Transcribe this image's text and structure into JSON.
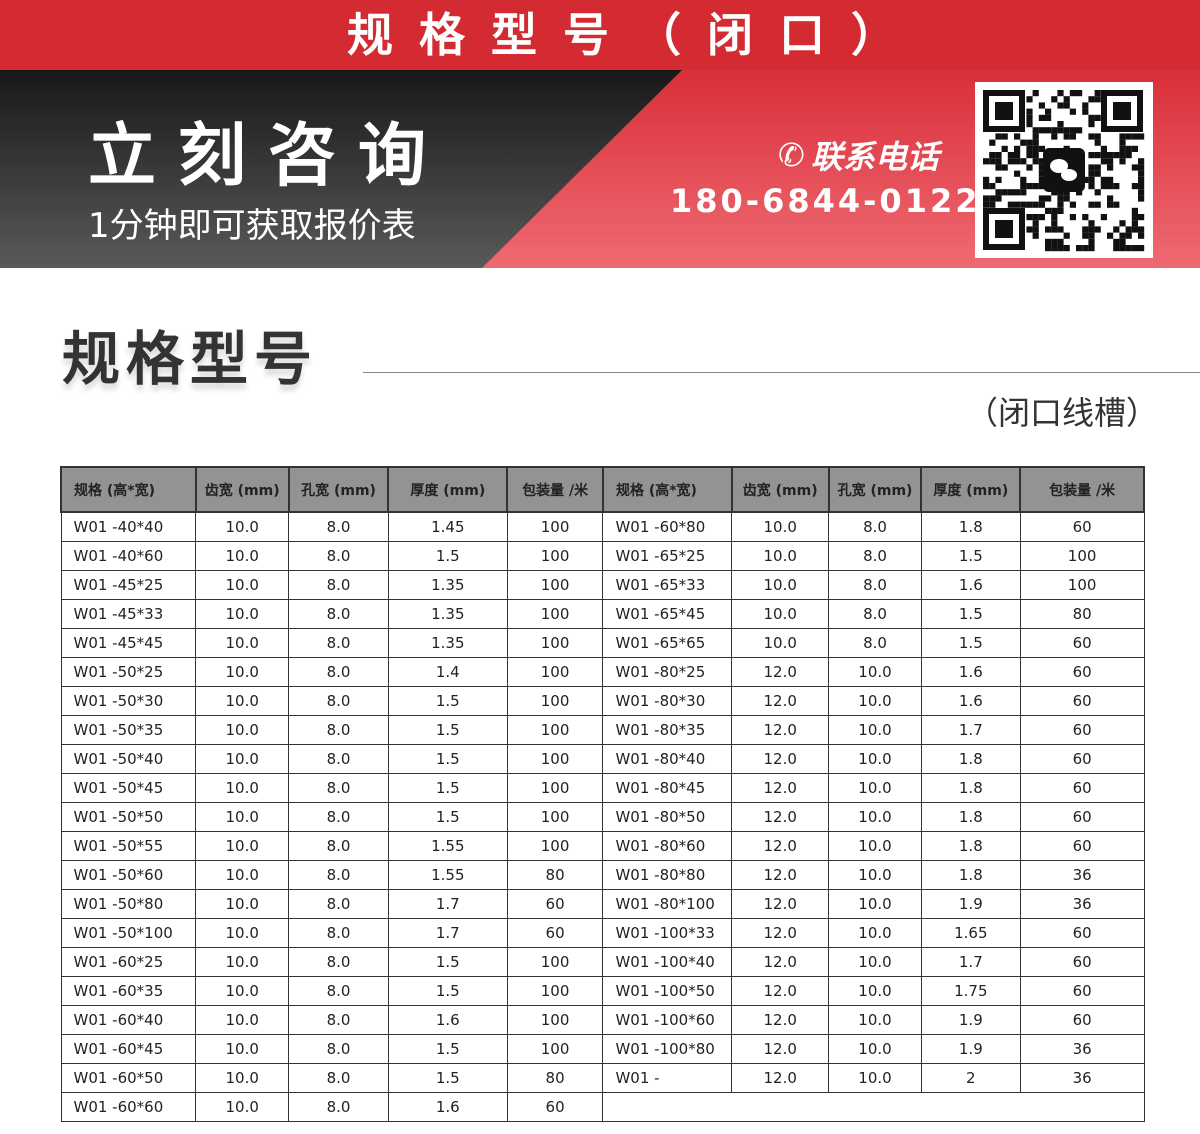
{
  "header": {
    "top_title": "规格型号（闭口）",
    "cta_title": "立刻咨询",
    "cta_sub": "1分钟即可获取报价表",
    "contact_label": "联系电话",
    "phone": "180-6844-0122",
    "qr_icon": "wechat-icon"
  },
  "section": {
    "title": "规格型号",
    "subtitle": "（闭口线槽）"
  },
  "colors": {
    "red": "#d42b33",
    "dark": "#222222",
    "header_gray": "#939393"
  },
  "table": {
    "headers": [
      "规格 (高*宽)",
      "齿宽 (mm)",
      "孔宽 (mm)",
      "厚度 (mm)",
      "包装量 /米",
      "规格 (高*宽)",
      "齿宽 (mm)",
      "孔宽 (mm)",
      "厚度 (mm)",
      "包装量 /米"
    ],
    "left": [
      [
        "W01 -40*40",
        "10.0",
        "8.0",
        "1.45",
        "100"
      ],
      [
        "W01 -40*60",
        "10.0",
        "8.0",
        "1.5",
        "100"
      ],
      [
        "W01 -45*25",
        "10.0",
        "8.0",
        "1.35",
        "100"
      ],
      [
        "W01 -45*33",
        "10.0",
        "8.0",
        "1.35",
        "100"
      ],
      [
        "W01 -45*45",
        "10.0",
        "8.0",
        "1.35",
        "100"
      ],
      [
        "W01 -50*25",
        "10.0",
        "8.0",
        "1.4",
        "100"
      ],
      [
        "W01 -50*30",
        "10.0",
        "8.0",
        "1.5",
        "100"
      ],
      [
        "W01 -50*35",
        "10.0",
        "8.0",
        "1.5",
        "100"
      ],
      [
        "W01 -50*40",
        "10.0",
        "8.0",
        "1.5",
        "100"
      ],
      [
        "W01 -50*45",
        "10.0",
        "8.0",
        "1.5",
        "100"
      ],
      [
        "W01 -50*50",
        "10.0",
        "8.0",
        "1.5",
        "100"
      ],
      [
        "W01 -50*55",
        "10.0",
        "8.0",
        "1.55",
        "100"
      ],
      [
        "W01 -50*60",
        "10.0",
        "8.0",
        "1.55",
        "80"
      ],
      [
        "W01 -50*80",
        "10.0",
        "8.0",
        "1.7",
        "60"
      ],
      [
        "W01 -50*100",
        "10.0",
        "8.0",
        "1.7",
        "60"
      ],
      [
        "W01 -60*25",
        "10.0",
        "8.0",
        "1.5",
        "100"
      ],
      [
        "W01 -60*35",
        "10.0",
        "8.0",
        "1.5",
        "100"
      ],
      [
        "W01 -60*40",
        "10.0",
        "8.0",
        "1.6",
        "100"
      ],
      [
        "W01 -60*45",
        "10.0",
        "8.0",
        "1.5",
        "100"
      ],
      [
        "W01 -60*50",
        "10.0",
        "8.0",
        "1.5",
        "80"
      ],
      [
        "W01 -60*60",
        "10.0",
        "8.0",
        "1.6",
        "60"
      ]
    ],
    "right": [
      [
        "W01 -60*80",
        "10.0",
        "8.0",
        "1.8",
        "60"
      ],
      [
        "W01 -65*25",
        "10.0",
        "8.0",
        "1.5",
        "100"
      ],
      [
        "W01 -65*33",
        "10.0",
        "8.0",
        "1.6",
        "100"
      ],
      [
        "W01 -65*45",
        "10.0",
        "8.0",
        "1.5",
        "80"
      ],
      [
        "W01 -65*65",
        "10.0",
        "8.0",
        "1.5",
        "60"
      ],
      [
        "W01 -80*25",
        "12.0",
        "10.0",
        "1.6",
        "60"
      ],
      [
        "W01 -80*30",
        "12.0",
        "10.0",
        "1.6",
        "60"
      ],
      [
        "W01 -80*35",
        "12.0",
        "10.0",
        "1.7",
        "60"
      ],
      [
        "W01 -80*40",
        "12.0",
        "10.0",
        "1.8",
        "60"
      ],
      [
        "W01 -80*45",
        "12.0",
        "10.0",
        "1.8",
        "60"
      ],
      [
        "W01 -80*50",
        "12.0",
        "10.0",
        "1.8",
        "60"
      ],
      [
        "W01 -80*60",
        "12.0",
        "10.0",
        "1.8",
        "60"
      ],
      [
        "W01 -80*80",
        "12.0",
        "10.0",
        "1.8",
        "36"
      ],
      [
        "W01 -80*100",
        "12.0",
        "10.0",
        "1.9",
        "36"
      ],
      [
        "W01 -100*33",
        "12.0",
        "10.0",
        "1.65",
        "60"
      ],
      [
        "W01 -100*40",
        "12.0",
        "10.0",
        "1.7",
        "60"
      ],
      [
        "W01 -100*50",
        "12.0",
        "10.0",
        "1.75",
        "60"
      ],
      [
        "W01 -100*60",
        "12.0",
        "10.0",
        "1.9",
        "60"
      ],
      [
        "W01 -100*80",
        "12.0",
        "10.0",
        "1.9",
        "36"
      ],
      [
        "W01 -",
        "12.0",
        "10.0",
        "2",
        "36"
      ]
    ]
  }
}
